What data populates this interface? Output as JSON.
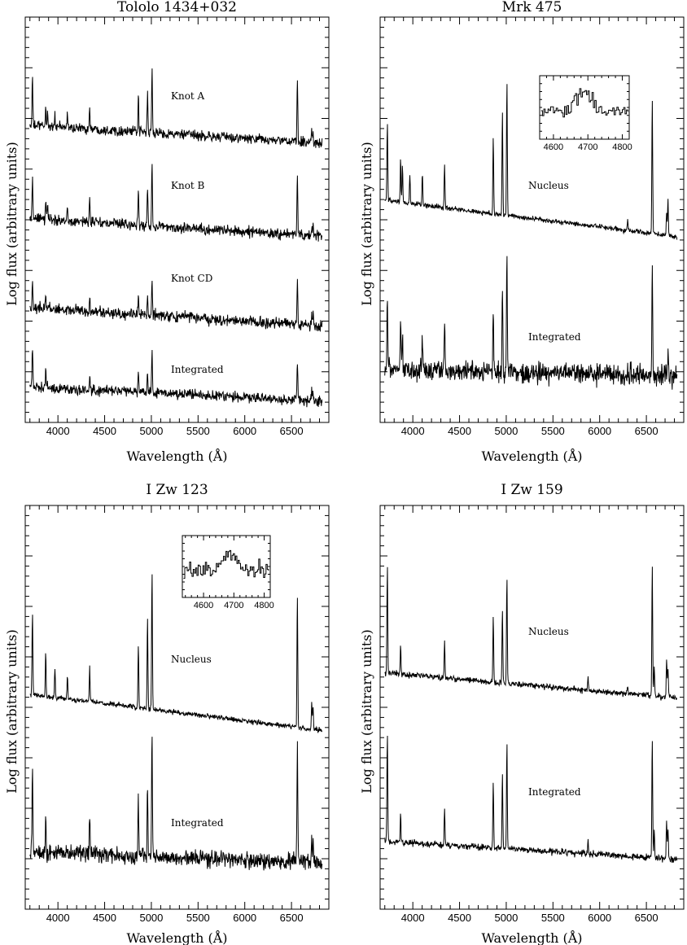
{
  "chart_data": [
    {
      "type": "line",
      "title": "Tololo 1434+032",
      "xlabel": "Wavelength (Å)",
      "ylabel": "Log flux (arbitrary units)",
      "xlim": [
        3650,
        6900
      ],
      "xticks": [
        4000,
        4500,
        5000,
        5500,
        6000,
        6500
      ],
      "ylim": [
        0,
        1
      ],
      "y_tick_labels": "none",
      "lines_A": [
        3727,
        3869,
        3889,
        3968,
        4102,
        4340,
        4861,
        4959,
        5007,
        6563,
        6584,
        6717,
        6731
      ],
      "series": [
        {
          "name": "Knot A",
          "baseline_level": 0.83,
          "continuum_slope": -0.05,
          "noise": 0.012,
          "lines": [
            [
              3727,
              0.13
            ],
            [
              3869,
              0.05
            ],
            [
              3889,
              0.04
            ],
            [
              3968,
              0.03
            ],
            [
              4102,
              0.04
            ],
            [
              4340,
              0.06
            ],
            [
              4861,
              0.1
            ],
            [
              4959,
              0.11
            ],
            [
              5007,
              0.18
            ],
            [
              6563,
              0.17
            ],
            [
              6717,
              0.04
            ],
            [
              6731,
              0.03
            ]
          ]
        },
        {
          "name": "Knot B",
          "baseline_level": 0.57,
          "continuum_slope": -0.05,
          "noise": 0.013,
          "lines": [
            [
              3727,
              0.11
            ],
            [
              3869,
              0.05
            ],
            [
              3889,
              0.04
            ],
            [
              4102,
              0.04
            ],
            [
              4340,
              0.07
            ],
            [
              4861,
              0.09
            ],
            [
              4959,
              0.1
            ],
            [
              5007,
              0.17
            ],
            [
              6563,
              0.17
            ],
            [
              6717,
              0.03
            ],
            [
              6731,
              0.03
            ]
          ]
        },
        {
          "name": "Knot CD",
          "baseline_level": 0.32,
          "continuum_slope": -0.05,
          "noise": 0.014,
          "lines": [
            [
              3727,
              0.08
            ],
            [
              3869,
              0.04
            ],
            [
              4340,
              0.04
            ],
            [
              4861,
              0.05
            ],
            [
              4959,
              0.06
            ],
            [
              5007,
              0.1
            ],
            [
              6563,
              0.13
            ],
            [
              6717,
              0.03
            ],
            [
              6731,
              0.03
            ]
          ]
        },
        {
          "name": "Integrated",
          "baseline_level": 0.1,
          "continuum_slope": -0.04,
          "noise": 0.012,
          "lines": [
            [
              3727,
              0.11
            ],
            [
              3869,
              0.04
            ],
            [
              4340,
              0.04
            ],
            [
              4861,
              0.06
            ],
            [
              4959,
              0.07
            ],
            [
              5007,
              0.12
            ],
            [
              6563,
              0.11
            ],
            [
              6717,
              0.03
            ],
            [
              6731,
              0.03
            ]
          ]
        }
      ]
    },
    {
      "type": "line",
      "title": "Mrk 475",
      "xlabel": "Wavelength (Å)",
      "ylabel": "Log flux (arbitrary units)",
      "xlim": [
        3650,
        6900
      ],
      "xticks": [
        4000,
        4500,
        5000,
        5500,
        6000,
        6500
      ],
      "ylim": [
        0,
        1
      ],
      "y_tick_labels": "none",
      "series": [
        {
          "name": "Nucleus",
          "baseline_level": 0.62,
          "continuum_slope": -0.1,
          "noise": 0.006,
          "lines": [
            [
              3727,
              0.22
            ],
            [
              3869,
              0.12
            ],
            [
              3889,
              0.1
            ],
            [
              3968,
              0.08
            ],
            [
              4102,
              0.09
            ],
            [
              4340,
              0.12
            ],
            [
              4861,
              0.22
            ],
            [
              4959,
              0.29
            ],
            [
              5007,
              0.38
            ],
            [
              6300,
              0.03
            ],
            [
              6563,
              0.38
            ],
            [
              6717,
              0.07
            ],
            [
              6731,
              0.1
            ]
          ]
        },
        {
          "name": "Integrated",
          "baseline_level": 0.15,
          "continuum_slope": -0.02,
          "noise": 0.025,
          "lines": [
            [
              3727,
              0.22
            ],
            [
              3869,
              0.15
            ],
            [
              3889,
              0.1
            ],
            [
              4102,
              0.1
            ],
            [
              4340,
              0.14
            ],
            [
              4861,
              0.2
            ],
            [
              4959,
              0.22
            ],
            [
              5007,
              0.35
            ],
            [
              6563,
              0.32
            ],
            [
              6731,
              0.07
            ]
          ]
        }
      ],
      "inset": {
        "xlim": [
          4560,
          4820
        ],
        "xticks": [
          4600,
          4700,
          4800
        ],
        "attached_to": "Nucleus",
        "feature_A": 4686
      }
    },
    {
      "type": "line",
      "title": "I Zw 123",
      "xlabel": "Wavelength (Å)",
      "ylabel": "Log flux (arbitrary units)",
      "xlim": [
        3650,
        6900
      ],
      "xticks": [
        4000,
        4500,
        5000,
        5500,
        6000,
        6500
      ],
      "ylim": [
        0,
        1
      ],
      "y_tick_labels": "none",
      "series": [
        {
          "name": "Nucleus",
          "baseline_level": 0.6,
          "continuum_slope": -0.1,
          "noise": 0.006,
          "lines": [
            [
              3727,
              0.23
            ],
            [
              3869,
              0.12
            ],
            [
              3968,
              0.08
            ],
            [
              4102,
              0.07
            ],
            [
              4340,
              0.1
            ],
            [
              4861,
              0.18
            ],
            [
              4959,
              0.26
            ],
            [
              5007,
              0.39
            ],
            [
              6563,
              0.37
            ],
            [
              6717,
              0.07
            ],
            [
              6731,
              0.06
            ]
          ]
        },
        {
          "name": "Integrated",
          "baseline_level": 0.16,
          "continuum_slope": -0.03,
          "noise": 0.02,
          "lines": [
            [
              3727,
              0.24
            ],
            [
              3869,
              0.1
            ],
            [
              4340,
              0.1
            ],
            [
              4861,
              0.17
            ],
            [
              4959,
              0.21
            ],
            [
              5007,
              0.35
            ],
            [
              6563,
              0.35
            ],
            [
              6717,
              0.07
            ],
            [
              6731,
              0.05
            ]
          ]
        }
      ],
      "inset": {
        "xlim": [
          4530,
          4820
        ],
        "xticks": [
          4600,
          4700,
          4800
        ],
        "attached_to": "Nucleus",
        "feature_A": 4686
      }
    },
    {
      "type": "line",
      "title": "I Zw 159",
      "xlabel": "Wavelength (Å)",
      "ylabel": "Log flux (arbitrary units)",
      "xlim": [
        3650,
        6900
      ],
      "xticks": [
        4000,
        4500,
        5000,
        5500,
        6000,
        6500
      ],
      "ylim": [
        0,
        1
      ],
      "y_tick_labels": "none",
      "series": [
        {
          "name": "Nucleus",
          "baseline_level": 0.66,
          "continuum_slope": -0.07,
          "noise": 0.007,
          "lines": [
            [
              3727,
              0.3
            ],
            [
              3869,
              0.08
            ],
            [
              4340,
              0.1
            ],
            [
              4861,
              0.19
            ],
            [
              4959,
              0.21
            ],
            [
              5007,
              0.3
            ],
            [
              5876,
              0.04
            ],
            [
              6300,
              0.02
            ],
            [
              6563,
              0.37
            ],
            [
              6584,
              0.09
            ],
            [
              6717,
              0.11
            ],
            [
              6731,
              0.08
            ]
          ]
        },
        {
          "name": "Integrated",
          "baseline_level": 0.19,
          "continuum_slope": -0.05,
          "noise": 0.008,
          "lines": [
            [
              3727,
              0.31
            ],
            [
              3869,
              0.08
            ],
            [
              4340,
              0.1
            ],
            [
              4861,
              0.19
            ],
            [
              4959,
              0.21
            ],
            [
              5007,
              0.3
            ],
            [
              5876,
              0.04
            ],
            [
              6563,
              0.34
            ],
            [
              6584,
              0.08
            ],
            [
              6717,
              0.11
            ],
            [
              6731,
              0.08
            ]
          ]
        }
      ]
    }
  ]
}
